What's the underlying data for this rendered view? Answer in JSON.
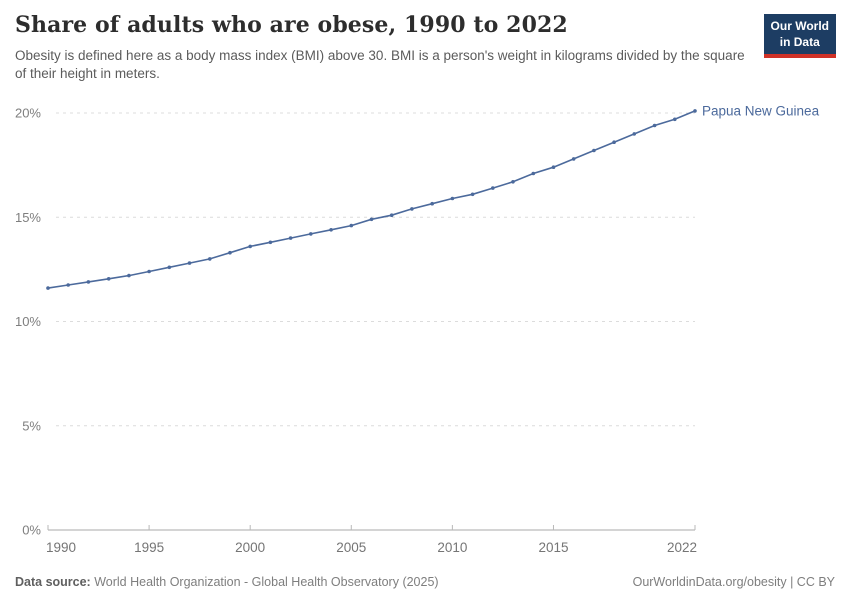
{
  "header": {
    "title": "Share of adults who are obese, 1990 to 2022",
    "subtitle": "Obesity is defined here as a body mass index (BMI) above 30. BMI is a person's weight in kilograms divided by the square of their height in meters.",
    "logo": {
      "line1": "Our World",
      "line2": "in Data",
      "bg_color": "#1d3d63",
      "accent_color": "#cf3127"
    }
  },
  "chart_data": {
    "type": "line",
    "title": "Share of adults who are obese, 1990 to 2022",
    "xlabel": "",
    "ylabel": "",
    "xlim": [
      1990,
      2022
    ],
    "ylim": [
      0,
      20
    ],
    "grid": "horizontal-dashed",
    "legend_position": "end-of-line-label",
    "x_ticks": [
      1990,
      1995,
      2000,
      2005,
      2010,
      2015,
      2022
    ],
    "y_ticks": [
      0,
      5,
      10,
      15,
      20
    ],
    "y_suffix": "%",
    "x": [
      1990,
      1991,
      1992,
      1993,
      1994,
      1995,
      1996,
      1997,
      1998,
      1999,
      2000,
      2001,
      2002,
      2003,
      2004,
      2005,
      2006,
      2007,
      2008,
      2009,
      2010,
      2011,
      2012,
      2013,
      2014,
      2015,
      2016,
      2017,
      2018,
      2019,
      2020,
      2021,
      2022
    ],
    "series": [
      {
        "name": "Papua New Guinea",
        "color": "#4C6A9C",
        "values": [
          11.6,
          11.75,
          11.9,
          12.05,
          12.2,
          12.4,
          12.6,
          12.8,
          13.0,
          13.3,
          13.6,
          13.8,
          14.0,
          14.2,
          14.4,
          14.6,
          14.9,
          15.1,
          15.4,
          15.65,
          15.9,
          16.1,
          16.4,
          16.7,
          17.1,
          17.4,
          17.8,
          18.2,
          18.6,
          19.0,
          19.4,
          19.7,
          20.1
        ]
      }
    ],
    "colors": {
      "grid": "#dcdcdc",
      "axis": "#a8a8a8",
      "tick_label": "#7e7e7e"
    }
  },
  "footer": {
    "datasource_label": "Data source:",
    "datasource_text": " World Health Organization - Global Health Observatory (2025)",
    "credit": "OurWorldinData.org/obesity | CC BY"
  }
}
